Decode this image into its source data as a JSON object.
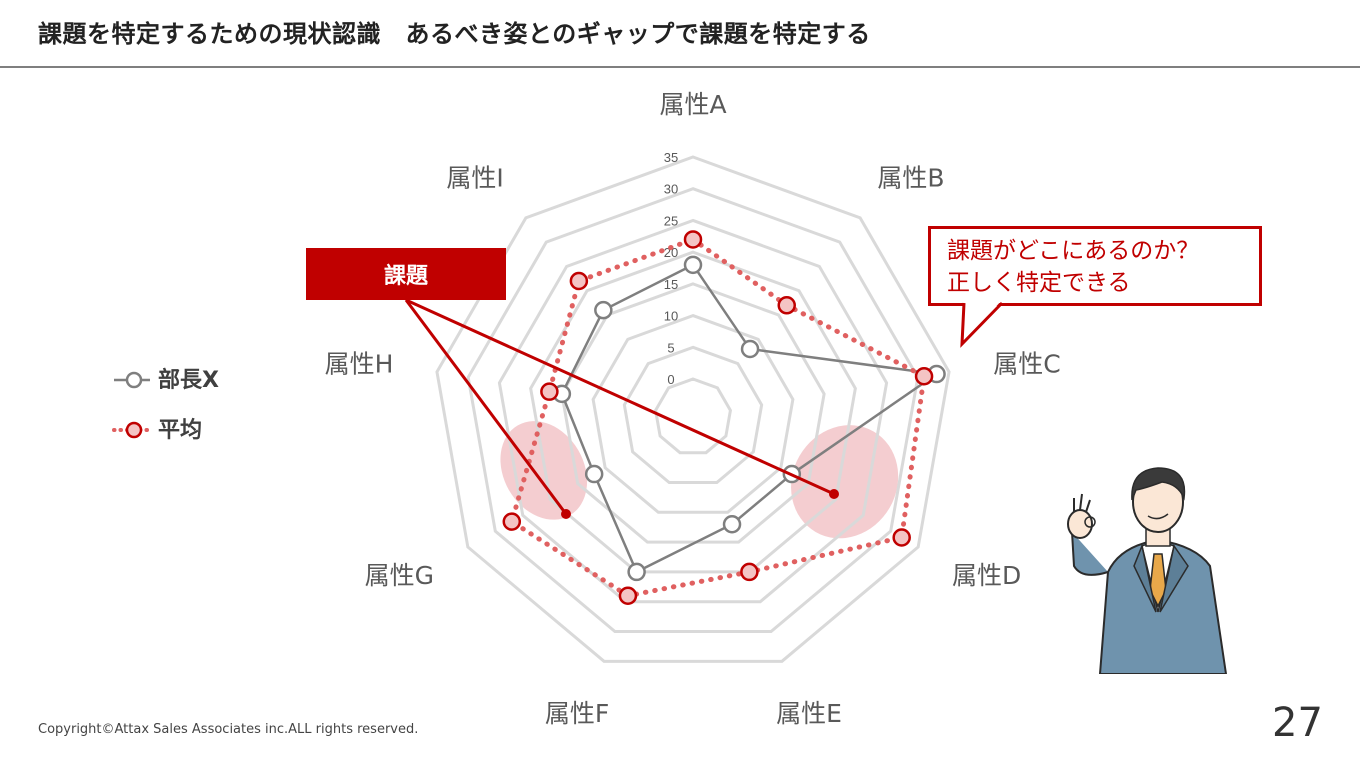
{
  "header": {
    "title": "課題を特定するための現状認識　あるべき姿とのギャップで課題を特定する"
  },
  "chart_data": {
    "type": "radar",
    "categories": [
      "属性A",
      "属性B",
      "属性C",
      "属性D",
      "属性E",
      "属性F",
      "属性G",
      "属性H",
      "属性I"
    ],
    "tick_labels": [
      "0",
      "5",
      "10",
      "15",
      "20",
      "25",
      "30",
      "35"
    ],
    "rlim": [
      0,
      35
    ],
    "grid": true,
    "series": [
      {
        "name": "部長X",
        "values": [
          18,
          8,
          33,
          12,
          12,
          20,
          12,
          15,
          16
        ],
        "color": "#7f7f7f",
        "style": "solid"
      },
      {
        "name": "平均",
        "values": [
          22,
          17,
          31,
          32,
          20,
          24,
          27,
          17,
          22
        ],
        "color": "#c00000",
        "style": "dotted"
      }
    ],
    "highlight_regions": [
      "属性G",
      "属性D"
    ]
  },
  "legend": {
    "position": "left",
    "items": [
      {
        "label": "部長X",
        "color": "#7f7f7f"
      },
      {
        "label": "平均",
        "color": "#c00000"
      }
    ]
  },
  "annotations": {
    "issue_label": "課題",
    "callout_line1": "課題がどこにあるのか？",
    "callout_line2": "正しく特定できる"
  },
  "footer": {
    "copyright": "Copyright©Attax Sales Associates inc.ALL rights reserved.",
    "page_number": "27"
  },
  "colors": {
    "accent": "#c00000",
    "grid": "#d9d9d9",
    "series1": "#7f7f7f",
    "highlight": "#f2c4c8"
  }
}
